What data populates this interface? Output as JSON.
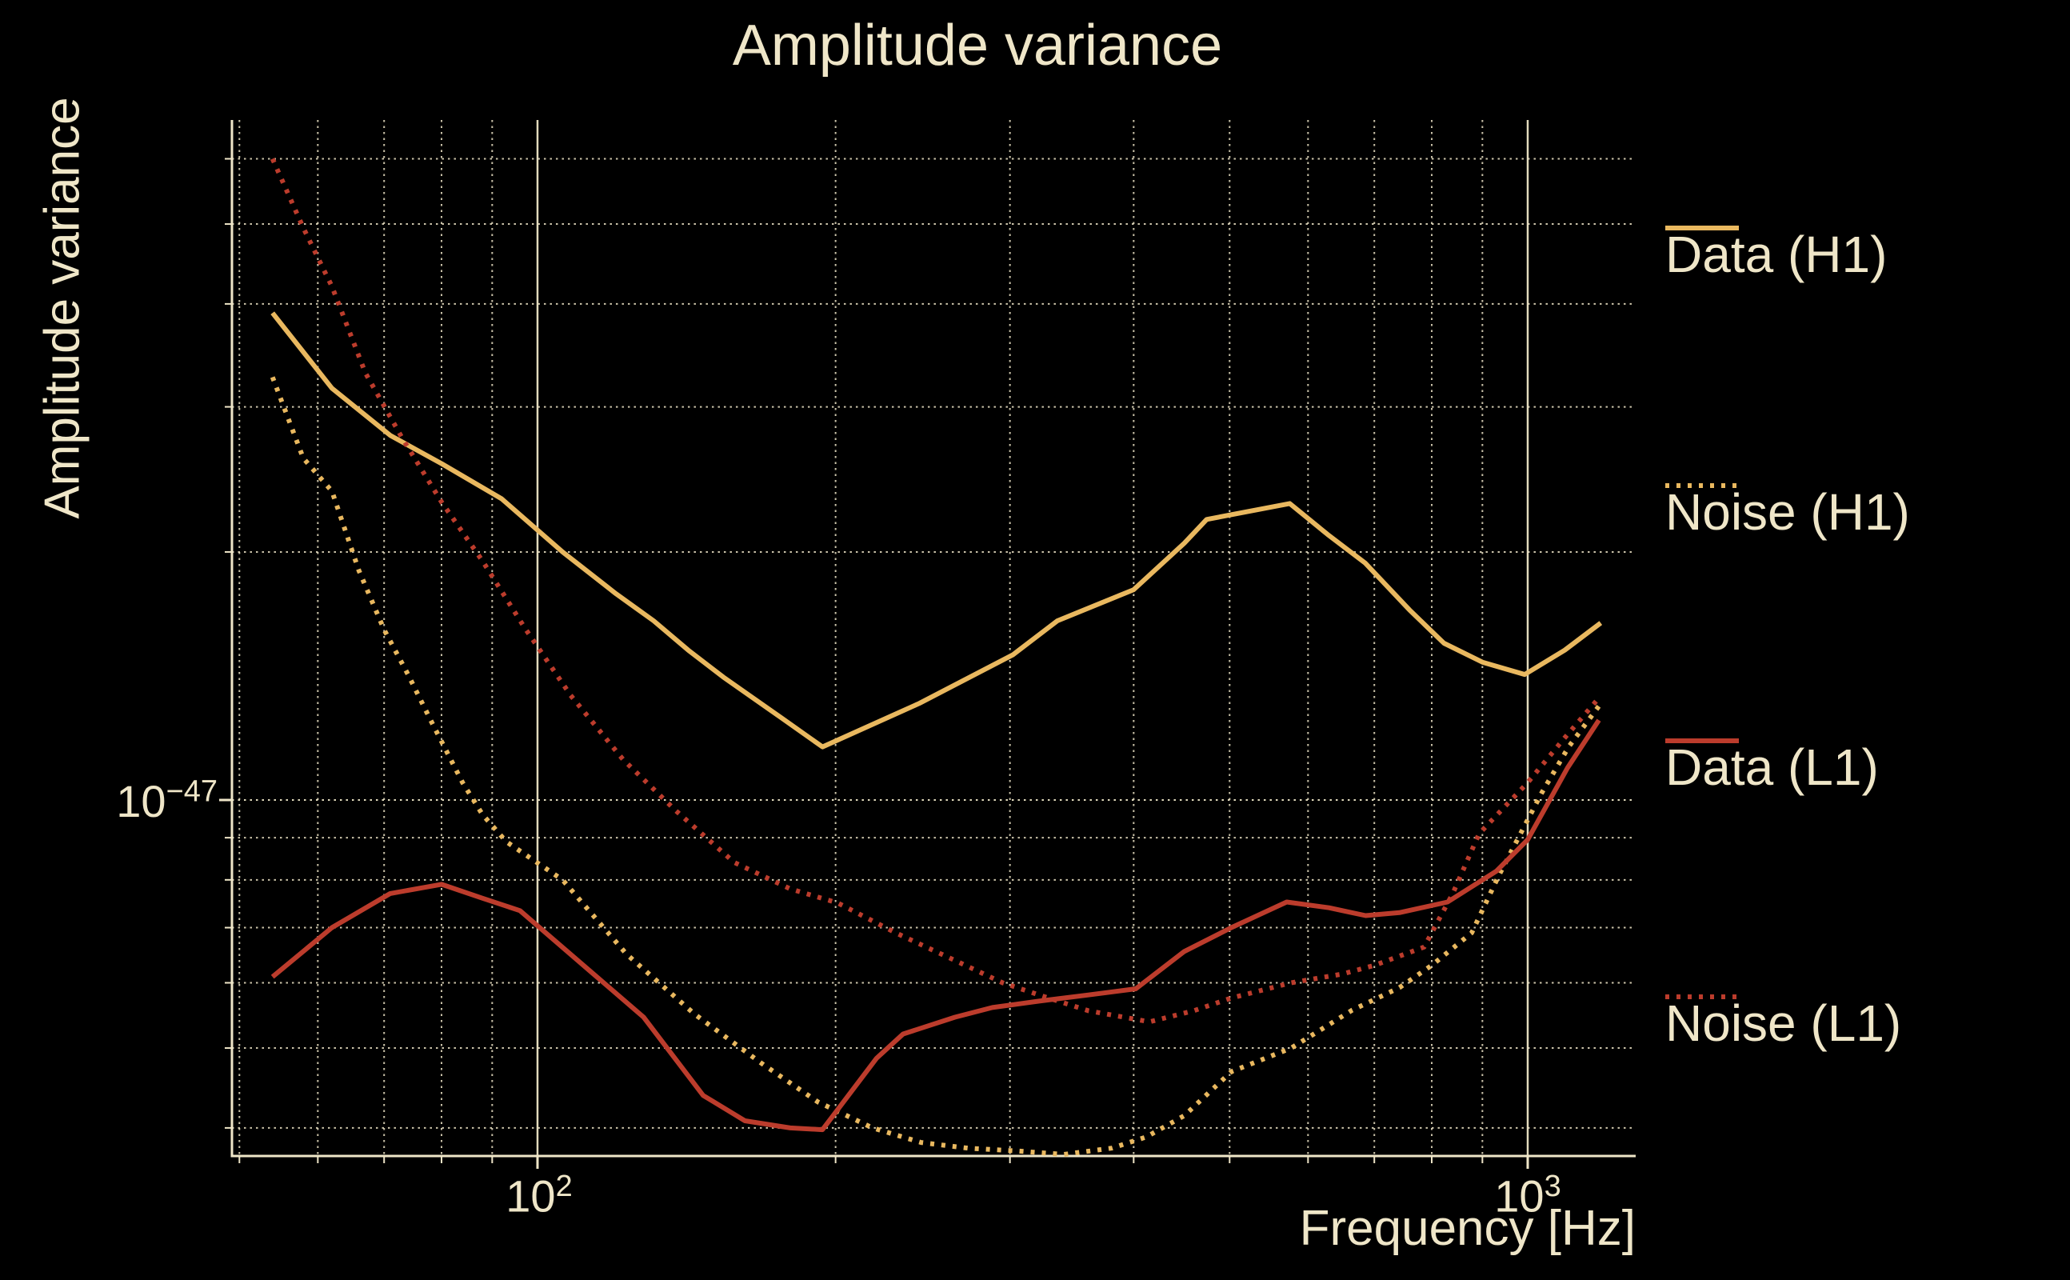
{
  "figure": {
    "background": "#000000",
    "text_color": "#efe6c8",
    "grid_color": "#efe6c8"
  },
  "chart_data": {
    "type": "line",
    "title": "Amplitude variance",
    "xlabel": "Frequency [Hz]",
    "ylabel": "Amplitude variance",
    "x_scale": "log",
    "y_scale": "log",
    "xlim": [
      49,
      1290
    ],
    "ylim": [
      3.7e-48,
      6.8e-47
    ],
    "value_unit": "amplitude variance values stored in units of 1e-47",
    "legend_position": "right-outside",
    "grid": "on",
    "x_ticks": {
      "major": [
        {
          "base": "10",
          "exp": "2",
          "value": 100
        },
        {
          "base": "10",
          "exp": "3",
          "value": 1000
        }
      ],
      "minor": [
        50,
        60,
        70,
        80,
        90,
        200,
        300,
        400,
        500,
        600,
        700,
        800,
        900
      ]
    },
    "y_ticks": {
      "major": [
        {
          "base": "10",
          "exp": "−47",
          "value_e47": 1
        }
      ],
      "minor_e47": [
        6,
        5,
        4,
        3,
        2,
        0.9,
        0.8,
        0.7,
        0.6,
        0.5,
        0.4
      ]
    },
    "series": [
      {
        "name": "Data (H1)",
        "color": "#e9b85f",
        "style": "solid",
        "points_f_v e47": [
          [
            54,
            3.9
          ],
          [
            62,
            3.16
          ],
          [
            71,
            2.77
          ],
          [
            80,
            2.56
          ],
          [
            92,
            2.32
          ],
          [
            106,
            2.0
          ],
          [
            120,
            1.78
          ],
          [
            131,
            1.65
          ],
          [
            142,
            1.52
          ],
          [
            154,
            1.41
          ],
          [
            176,
            1.26
          ],
          [
            194,
            1.16
          ],
          [
            243,
            1.31
          ],
          [
            302,
            1.5
          ],
          [
            335,
            1.65
          ],
          [
            400,
            1.8
          ],
          [
            450,
            2.05
          ],
          [
            474,
            2.19
          ],
          [
            575,
            2.29
          ],
          [
            628,
            2.1
          ],
          [
            685,
            1.94
          ],
          [
            760,
            1.7
          ],
          [
            823,
            1.55
          ],
          [
            900,
            1.47
          ],
          [
            993,
            1.42
          ],
          [
            1090,
            1.52
          ],
          [
            1185,
            1.64
          ]
        ]
      },
      {
        "name": "Noise (H1)",
        "color": "#e9b85f",
        "style": "dotted",
        "points_f_v e47": [
          [
            54,
            3.26
          ],
          [
            58,
            2.6
          ],
          [
            62,
            2.37
          ],
          [
            66,
            1.9
          ],
          [
            70,
            1.61
          ],
          [
            74,
            1.42
          ],
          [
            78,
            1.25
          ],
          [
            84,
            1.05
          ],
          [
            88,
            0.96
          ],
          [
            93,
            0.89
          ],
          [
            106,
            0.8
          ],
          [
            123,
            0.65
          ],
          [
            144,
            0.55
          ],
          [
            168,
            0.48
          ],
          [
            192,
            0.43
          ],
          [
            218,
            0.4
          ],
          [
            244,
            0.384
          ],
          [
            272,
            0.378
          ],
          [
            305,
            0.375
          ],
          [
            340,
            0.371
          ],
          [
            380,
            0.378
          ],
          [
            412,
            0.39
          ],
          [
            450,
            0.414
          ],
          [
            502,
            0.468
          ],
          [
            577,
            0.5
          ],
          [
            665,
            0.556
          ],
          [
            742,
            0.592
          ],
          [
            800,
            0.63
          ],
          [
            878,
            0.69
          ],
          [
            935,
            0.81
          ],
          [
            1033,
            1.02
          ],
          [
            1100,
            1.16
          ],
          [
            1180,
            1.3
          ]
        ]
      },
      {
        "name": "Data (L1)",
        "color": "#bc3c2c",
        "style": "solid",
        "points_f_v e47": [
          [
            54,
            0.61
          ],
          [
            62,
            0.7
          ],
          [
            71,
            0.77
          ],
          [
            80,
            0.79
          ],
          [
            88,
            0.76
          ],
          [
            96,
            0.734
          ],
          [
            113,
            0.62
          ],
          [
            128,
            0.545
          ],
          [
            147,
            0.438
          ],
          [
            162,
            0.408
          ],
          [
            180,
            0.4
          ],
          [
            194,
            0.398
          ],
          [
            220,
            0.486
          ],
          [
            234,
            0.52
          ],
          [
            264,
            0.545
          ],
          [
            288,
            0.56
          ],
          [
            321,
            0.57
          ],
          [
            360,
            0.58
          ],
          [
            402,
            0.59
          ],
          [
            450,
            0.655
          ],
          [
            502,
            0.7
          ],
          [
            571,
            0.752
          ],
          [
            630,
            0.74
          ],
          [
            686,
            0.724
          ],
          [
            742,
            0.73
          ],
          [
            830,
            0.752
          ],
          [
            930,
            0.82
          ],
          [
            1000,
            0.895
          ],
          [
            1097,
            1.094
          ],
          [
            1180,
            1.25
          ]
        ]
      },
      {
        "name": "Noise (L1)",
        "color": "#bc3c2c",
        "style": "dotted",
        "points_f_v e47": [
          [
            54,
            6.0
          ],
          [
            58,
            4.95
          ],
          [
            62,
            4.2
          ],
          [
            67,
            3.3
          ],
          [
            73,
            2.75
          ],
          [
            80,
            2.3
          ],
          [
            88,
            1.95
          ],
          [
            97,
            1.62
          ],
          [
            108,
            1.34
          ],
          [
            122,
            1.12
          ],
          [
            138,
            0.97
          ],
          [
            158,
            0.84
          ],
          [
            180,
            0.78
          ],
          [
            201,
            0.75
          ],
          [
            230,
            0.69
          ],
          [
            263,
            0.64
          ],
          [
            295,
            0.6
          ],
          [
            321,
            0.58
          ],
          [
            360,
            0.555
          ],
          [
            415,
            0.538
          ],
          [
            460,
            0.555
          ],
          [
            502,
            0.575
          ],
          [
            577,
            0.6
          ],
          [
            650,
            0.615
          ],
          [
            700,
            0.63
          ],
          [
            786,
            0.663
          ],
          [
            840,
            0.77
          ],
          [
            893,
            0.91
          ],
          [
            1000,
            1.05
          ],
          [
            1090,
            1.19
          ],
          [
            1180,
            1.33
          ]
        ]
      }
    ]
  }
}
